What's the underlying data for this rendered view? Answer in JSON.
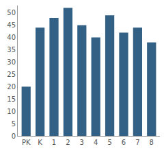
{
  "chart_data": {
    "type": "bar",
    "categories": [
      "PK",
      "K",
      "1",
      "2",
      "3",
      "4",
      "5",
      "6",
      "7",
      "8"
    ],
    "values": [
      20,
      44,
      48,
      52,
      45,
      40,
      49,
      42,
      44,
      38
    ],
    "color": "#336185",
    "ylim": [
      0,
      53
    ],
    "yticks": [
      0,
      5,
      10,
      15,
      20,
      25,
      30,
      35,
      40,
      45,
      50
    ],
    "grid": false
  }
}
